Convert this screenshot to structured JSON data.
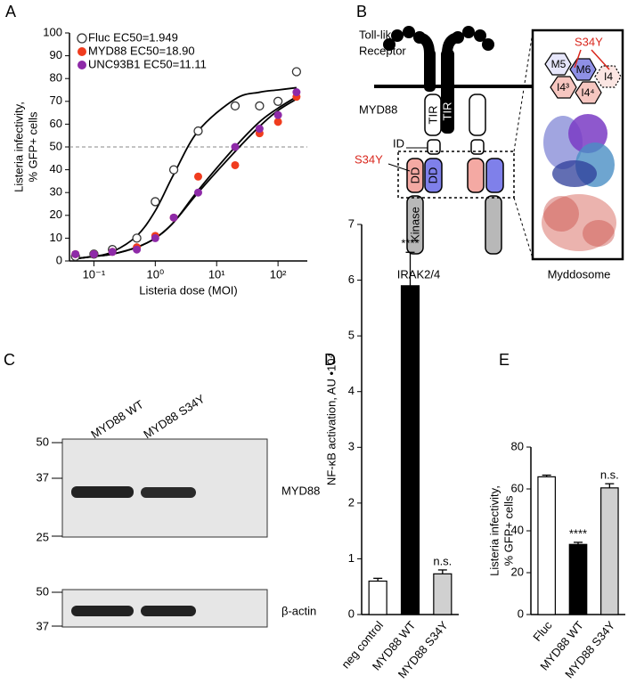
{
  "panel_labels": [
    "A",
    "B",
    "C",
    "D",
    "E"
  ],
  "chart_data": [
    {
      "type": "scatter",
      "xscale": "log",
      "xlabel": "Listeria dose (MOI)",
      "ylabel": [
        "Listeria infectivity,",
        "% GFP+ cells"
      ],
      "x": [
        0.05,
        0.1,
        0.2,
        0.5,
        1,
        2,
        5,
        20,
        50,
        100,
        200
      ],
      "series": [
        {
          "name": "Fluc EC50=1.949",
          "color": "#ffffff",
          "values": [
            2,
            3,
            5,
            10,
            26,
            40,
            57,
            68,
            68,
            70,
            83
          ],
          "fit_values": [
            1,
            2,
            4,
            11,
            22,
            38,
            57,
            71,
            74,
            75,
            76
          ]
        },
        {
          "name": "MYD88 EC50=18.90",
          "color": "#f03c1e",
          "values": [
            3,
            3,
            4,
            6,
            11,
            19,
            37,
            42,
            56,
            61,
            72
          ],
          "fit_values": [
            1,
            2,
            3,
            6,
            10,
            17,
            30,
            48,
            59,
            66,
            71
          ]
        },
        {
          "name": "UNC93B1 EC50=11.11",
          "color": "#8e2aa8",
          "values": [
            3,
            3,
            4,
            5,
            10,
            19,
            30,
            50,
            58,
            64,
            74
          ],
          "fit_values": [
            1,
            2,
            3,
            6,
            10,
            17,
            31,
            50,
            61,
            67,
            72
          ]
        }
      ],
      "fit_color": "#000000",
      "hline": 50,
      "xlim": [
        0.04,
        300
      ],
      "xticks": [
        {
          "value": 0.1,
          "label": "10⁻¹"
        },
        {
          "value": 1,
          "label": "10⁰"
        },
        {
          "value": 10,
          "label": "10¹"
        },
        {
          "value": 100,
          "label": "10²"
        }
      ],
      "ylim": [
        0,
        100
      ],
      "yticks": [
        0,
        10,
        20,
        30,
        40,
        50,
        60,
        70,
        80,
        90,
        100
      ],
      "legend": "upper left"
    },
    {
      "type": "bar",
      "ylabel": [
        "NF-κB activation, AU •10⁴"
      ],
      "categories": [
        "neg control",
        "MYD88 WT",
        "MYD88 S34Y"
      ],
      "values": [
        0.6,
        5.9,
        0.73
      ],
      "errors": [
        0.05,
        0.6,
        0.07
      ],
      "colors": [
        "#ffffff",
        "#000000",
        "#d0d0d0"
      ],
      "bar_labels": [
        null,
        "****",
        "n.s."
      ],
      "ylim": [
        0,
        7
      ],
      "yticks": [
        0,
        1,
        2,
        3,
        4,
        5,
        6,
        7
      ]
    },
    {
      "type": "bar",
      "ylabel": [
        "Listeria infectivity,",
        "% GFP+ cells"
      ],
      "categories": [
        "Fluc",
        "MYD88 WT",
        "MYD88 S34Y"
      ],
      "values": [
        65.8,
        33.5,
        60.5
      ],
      "errors": [
        0.8,
        1.0,
        2.0
      ],
      "colors": [
        "#ffffff",
        "#000000",
        "#d0d0d0"
      ],
      "bar_labels": [
        null,
        "****",
        "n.s."
      ],
      "ylim": [
        0,
        80
      ],
      "yticks": [
        0,
        20,
        40,
        60,
        80
      ]
    }
  ],
  "diagram": {
    "receptor_label": [
      "Toll-like",
      "Receptor"
    ],
    "receptor_tir": "TIR",
    "myd88_label": "MYD88",
    "tir": "TIR",
    "id": "ID",
    "mutation": "S34Y",
    "dd_left": "DD",
    "dd_right": "DD",
    "kinase": "Kinase",
    "irak_label": "IRAK2/4",
    "myddosome_label": "Myddosome",
    "structure": {
      "mutation": "S34Y",
      "subunits": [
        "M5",
        "M6",
        "I4³",
        "I4⁴",
        "I4"
      ]
    }
  },
  "blot": {
    "lanes": [
      "MYD88 WT",
      "MYD88 S34Y"
    ],
    "upper": {
      "markers": [
        "50",
        "37",
        "25"
      ],
      "label": "MYD88"
    },
    "lower": {
      "markers": [
        "50",
        "37"
      ],
      "label": "β-actin"
    }
  }
}
